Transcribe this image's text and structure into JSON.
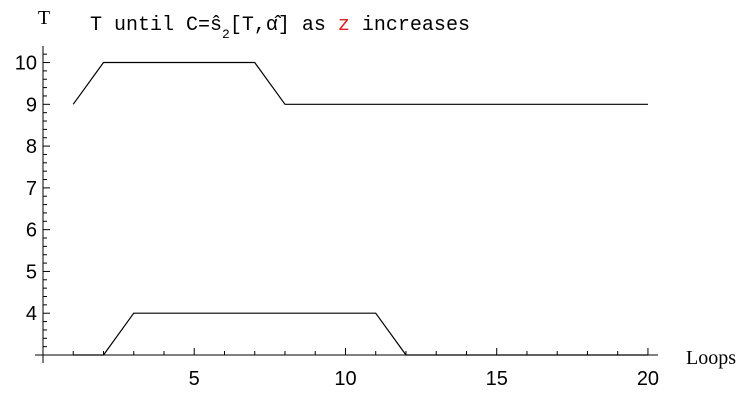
{
  "chart_data": {
    "type": "line",
    "title_parts": [
      {
        "text": "T until  C=",
        "color": "#000000"
      },
      {
        "text": "ŝ",
        "color": "#000000"
      },
      {
        "text": "2",
        "color": "#000000",
        "sub": true
      },
      {
        "text": "[T,",
        "color": "#000000"
      },
      {
        "text": "α̂",
        "color": "#000000"
      },
      {
        "text": "] as ",
        "color": "#000000"
      },
      {
        "text": "z",
        "color": "#e02020"
      },
      {
        "text": " increases",
        "color": "#000000"
      }
    ],
    "xlabel": "Loops",
    "ylabel": "T",
    "xlim": [
      0,
      20.2
    ],
    "ylim": [
      3,
      10.3
    ],
    "x_ticks": [
      5,
      10,
      15,
      20
    ],
    "y_ticks": [
      4,
      5,
      6,
      7,
      8,
      9,
      10
    ],
    "grid": false,
    "series": [
      {
        "x": [
          1,
          2,
          3,
          4,
          5,
          6,
          7,
          8,
          9,
          10,
          11,
          12,
          13,
          14,
          15,
          16,
          17,
          18,
          19,
          20
        ],
        "values": [
          9,
          10,
          10,
          10,
          10,
          10,
          10,
          9,
          9,
          9,
          9,
          9,
          9,
          9,
          9,
          9,
          9,
          9,
          9,
          9
        ]
      },
      {
        "x": [
          1,
          2,
          3,
          4,
          5,
          6,
          7,
          8,
          9,
          10,
          11,
          12,
          13,
          14,
          15,
          16,
          17,
          18,
          19,
          20
        ],
        "values": [
          3,
          3,
          4,
          4,
          4,
          4,
          4,
          4,
          4,
          4,
          4,
          3,
          3,
          3,
          3,
          3,
          3,
          3,
          3,
          3
        ]
      }
    ]
  }
}
